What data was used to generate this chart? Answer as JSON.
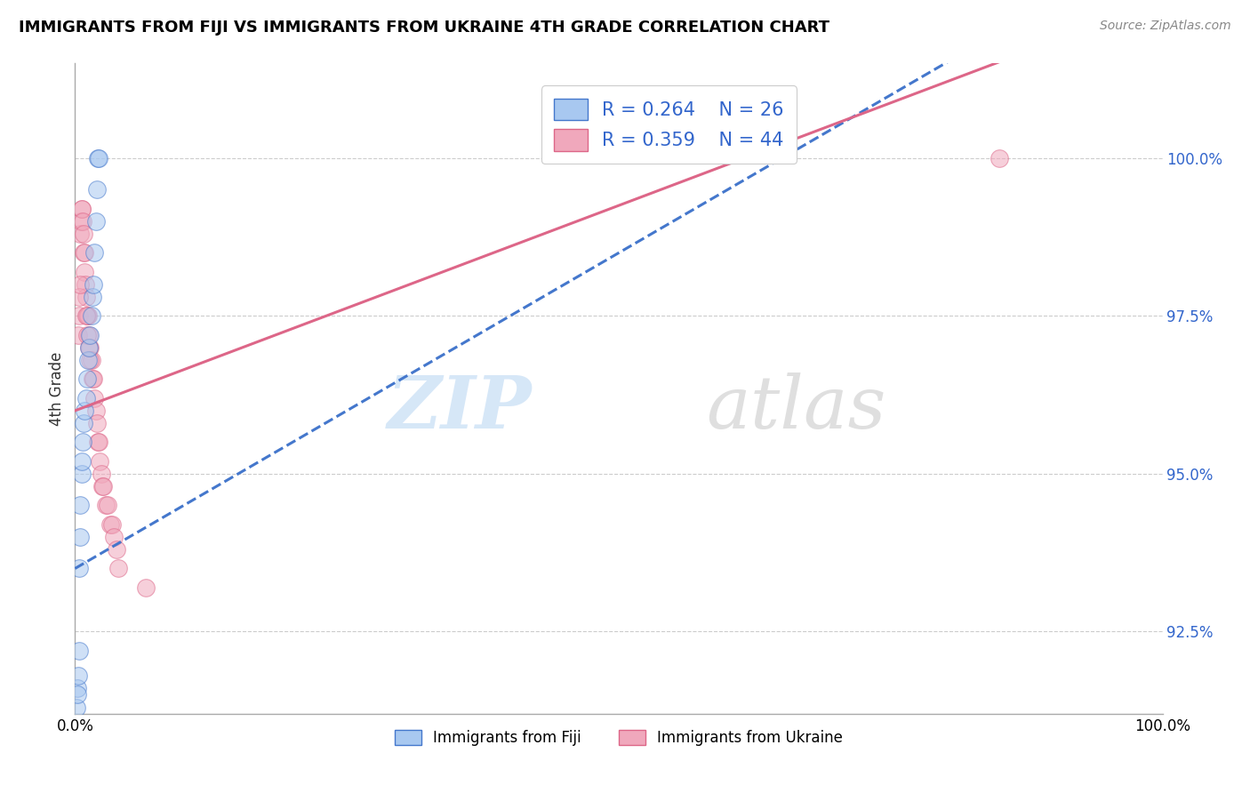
{
  "title": "IMMIGRANTS FROM FIJI VS IMMIGRANTS FROM UKRAINE 4TH GRADE CORRELATION CHART",
  "source": "Source: ZipAtlas.com",
  "ylabel": "4th Grade",
  "y_tick_labels": [
    "92.5%",
    "95.0%",
    "97.5%",
    "100.0%"
  ],
  "y_tick_values": [
    92.5,
    95.0,
    97.5,
    100.0
  ],
  "xlim": [
    0,
    100
  ],
  "ylim": [
    91.2,
    101.5
  ],
  "fiji_color": "#a8c8f0",
  "ukraine_color": "#f0a8bc",
  "fiji_line_color": "#4477cc",
  "ukraine_line_color": "#dd6688",
  "fiji_x": [
    0.2,
    0.3,
    0.35,
    0.4,
    0.45,
    0.5,
    0.6,
    0.65,
    0.7,
    0.8,
    0.9,
    1.0,
    1.1,
    1.2,
    1.3,
    1.4,
    1.5,
    1.6,
    1.7,
    1.8,
    1.9,
    2.0,
    2.1,
    2.2,
    0.15,
    0.25
  ],
  "fiji_y": [
    91.6,
    91.8,
    92.2,
    93.5,
    94.0,
    94.5,
    95.0,
    95.2,
    95.5,
    95.8,
    96.0,
    96.2,
    96.5,
    96.8,
    97.0,
    97.2,
    97.5,
    97.8,
    98.0,
    98.5,
    99.0,
    99.5,
    100.0,
    100.0,
    91.3,
    91.5
  ],
  "ukraine_x": [
    0.3,
    0.4,
    0.5,
    0.55,
    0.6,
    0.65,
    0.7,
    0.75,
    0.8,
    0.85,
    0.9,
    0.95,
    1.0,
    1.1,
    1.2,
    1.3,
    1.4,
    1.5,
    1.6,
    1.7,
    1.8,
    1.9,
    2.0,
    2.1,
    2.2,
    2.3,
    2.4,
    2.5,
    2.6,
    2.8,
    3.0,
    3.2,
    3.4,
    3.6,
    3.8,
    4.0,
    0.35,
    0.45,
    1.05,
    1.15,
    1.25,
    1.35,
    85.0,
    6.5
  ],
  "ukraine_y": [
    97.2,
    97.5,
    98.8,
    99.0,
    99.2,
    99.2,
    99.0,
    98.8,
    98.5,
    98.5,
    98.2,
    98.0,
    97.8,
    97.5,
    97.5,
    97.2,
    97.0,
    96.8,
    96.5,
    96.5,
    96.2,
    96.0,
    95.8,
    95.5,
    95.5,
    95.2,
    95.0,
    94.8,
    94.8,
    94.5,
    94.5,
    94.2,
    94.2,
    94.0,
    93.8,
    93.5,
    97.8,
    98.0,
    97.5,
    97.2,
    97.0,
    96.8,
    100.0,
    93.2
  ],
  "fiji_trendline": [
    [
      0.0,
      93.5
    ],
    [
      100.0,
      103.5
    ]
  ],
  "ukraine_trendline": [
    [
      0.0,
      96.0
    ],
    [
      100.0,
      102.5
    ]
  ],
  "watermark_zip": "ZIP",
  "watermark_atlas": "atlas",
  "bottom_legend_fiji": "Immigrants from Fiji",
  "bottom_legend_ukraine": "Immigrants from Ukraine"
}
